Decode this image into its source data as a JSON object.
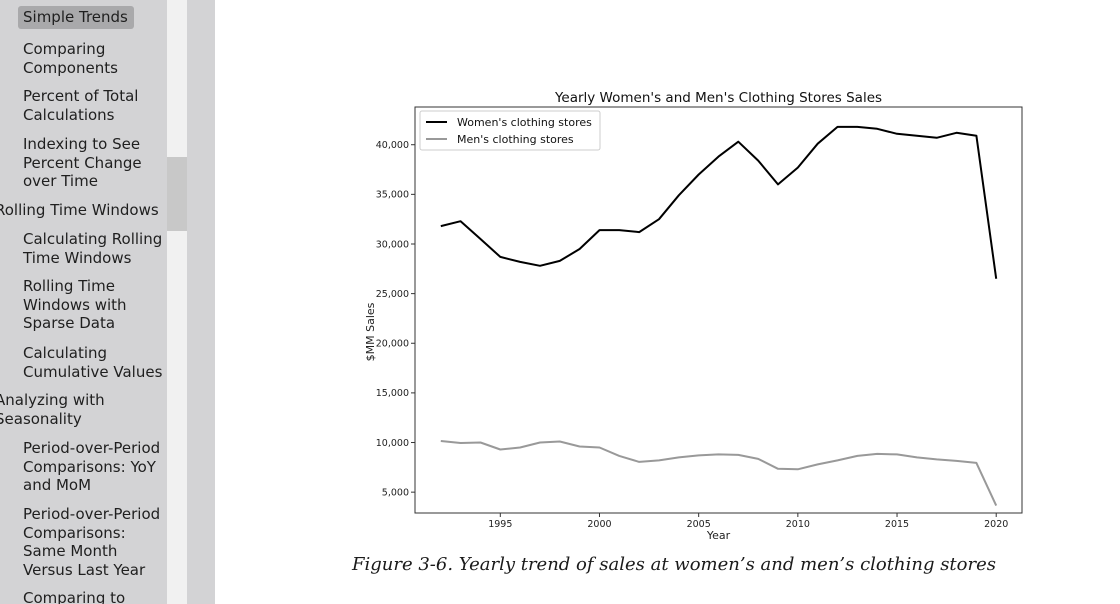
{
  "toc": {
    "items": [
      {
        "label": "Simple Trends",
        "selected": true
      },
      {
        "label": "Comparing Components"
      },
      {
        "label": "Percent of Total Calculations"
      },
      {
        "label": "Indexing to See Percent Change over Time"
      },
      {
        "label": "Rolling Time Windows"
      },
      {
        "label": "Calculating Rolling Time Windows"
      },
      {
        "label": "Rolling Time Windows with Sparse Data"
      },
      {
        "label": "Calculating Cumulative Values"
      },
      {
        "label": "Analyzing with Seasonality"
      },
      {
        "label": "Period-over-Period Comparisons: YoY and MoM"
      },
      {
        "label": "Period-over-Period Comparisons: Same Month Versus Last Year"
      },
      {
        "label": "Comparing to"
      }
    ]
  },
  "figure": {
    "caption": "Figure 3-6. Yearly trend of sales at women’s and men’s clothing stores"
  },
  "chart_data": {
    "type": "line",
    "title": "Yearly Women's and Men's Clothing Stores Sales",
    "xlabel": "Year",
    "ylabel": "$MM Sales",
    "xlim": [
      1990.7,
      2021.3
    ],
    "ylim": [
      2900,
      43800
    ],
    "x_ticks": [
      1995,
      2000,
      2005,
      2010,
      2015,
      2020
    ],
    "y_ticks": [
      5000,
      10000,
      15000,
      20000,
      25000,
      30000,
      35000,
      40000
    ],
    "y_tick_labels": [
      "5,000",
      "10,000",
      "15,000",
      "20,000",
      "25,000",
      "30,000",
      "35,000",
      "40,000"
    ],
    "legend_position": "top-left",
    "grid": false,
    "x": [
      1992,
      1993,
      1994,
      1995,
      1996,
      1997,
      1998,
      1999,
      2000,
      2001,
      2002,
      2003,
      2004,
      2005,
      2006,
      2007,
      2008,
      2009,
      2010,
      2011,
      2012,
      2013,
      2014,
      2015,
      2016,
      2017,
      2018,
      2019,
      2020
    ],
    "series": [
      {
        "name": "Women's clothing stores",
        "color": "#000000",
        "values": [
          31800,
          32300,
          30500,
          28700,
          28200,
          27800,
          28300,
          29500,
          31400,
          31400,
          31200,
          32500,
          34900,
          37000,
          38800,
          40300,
          38400,
          36000,
          37700,
          40100,
          41800,
          41800,
          41600,
          41100,
          40900,
          40700,
          41200,
          40900,
          26500
        ]
      },
      {
        "name": "Men's clothing stores",
        "color": "#999999",
        "values": [
          10150,
          9950,
          10000,
          9300,
          9500,
          10000,
          10100,
          9600,
          9500,
          8650,
          8050,
          8200,
          8500,
          8700,
          8800,
          8750,
          8350,
          7350,
          7300,
          7800,
          8200,
          8650,
          8850,
          8800,
          8500,
          8300,
          8150,
          7950,
          3650
        ]
      }
    ]
  }
}
